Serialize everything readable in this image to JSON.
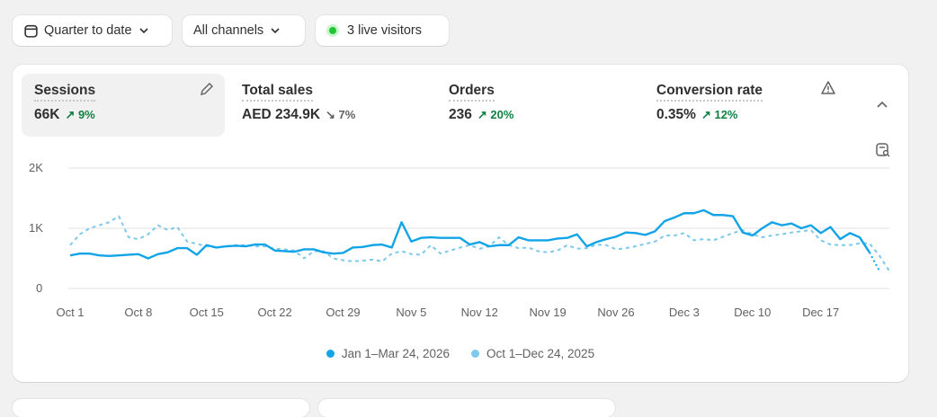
{
  "toolbar": {
    "date_range": {
      "label": "Quarter to date",
      "icon": "calendar-icon"
    },
    "channels": {
      "label": "All channels"
    },
    "live": {
      "label": "3 live visitors",
      "dot_color": "#22c531"
    }
  },
  "metrics": [
    {
      "label": "Sessions",
      "value": "66K",
      "delta": "9%",
      "direction": "up",
      "active": true
    },
    {
      "label": "Total sales",
      "value": "AED 234.9K",
      "delta": "7%",
      "direction": "down"
    },
    {
      "label": "Orders",
      "value": "236",
      "delta": "20%",
      "direction": "up"
    },
    {
      "label": "Conversion rate",
      "value": "0.35%",
      "delta": "12%",
      "direction": "up"
    }
  ],
  "colors": {
    "current": "#13a4e8",
    "previous": "#7cc9ec",
    "positive": "#108043"
  },
  "chart_data": {
    "type": "line",
    "y_ticks": [
      "2K",
      "1K",
      "0"
    ],
    "ylim": [
      0,
      2000
    ],
    "x_ticks": [
      "Oct 1",
      "Oct 8",
      "Oct 15",
      "Oct 22",
      "Oct 29",
      "Nov 5",
      "Nov 12",
      "Nov 19",
      "Nov 26",
      "Dec 3",
      "Dec 10",
      "Dec 17"
    ],
    "x_start": "Oct 1",
    "grid": true,
    "legend": "bottom",
    "series": [
      {
        "name": "Jan 1–Mar 24, 2026",
        "style": "solid",
        "values": [
          550,
          580,
          580,
          550,
          540,
          550,
          560,
          570,
          500,
          570,
          600,
          670,
          670,
          560,
          720,
          680,
          700,
          710,
          700,
          730,
          730,
          630,
          620,
          610,
          650,
          650,
          600,
          580,
          590,
          680,
          690,
          720,
          730,
          680,
          1100,
          780,
          840,
          850,
          840,
          840,
          840,
          730,
          770,
          700,
          720,
          720,
          850,
          800,
          800,
          800,
          830,
          840,
          900,
          700,
          770,
          820,
          860,
          930,
          920,
          890,
          950,
          1120,
          1180,
          1250,
          1250,
          1300,
          1220,
          1220,
          1200,
          930,
          880,
          1000,
          1100,
          1050,
          1080,
          1000,
          1050,
          920,
          1020,
          820,
          920,
          850,
          600,
          300
        ]
      },
      {
        "name": "Oct 1–Dec 24, 2025",
        "style": "dashed",
        "values": [
          720,
          900,
          1000,
          1050,
          1100,
          1200,
          850,
          820,
          900,
          1050,
          970,
          1020,
          780,
          740,
          700,
          680,
          700,
          720,
          720,
          700,
          700,
          660,
          650,
          630,
          500,
          620,
          620,
          500,
          470,
          450,
          460,
          480,
          450,
          580,
          620,
          570,
          560,
          720,
          580,
          630,
          680,
          720,
          660,
          700,
          850,
          720,
          670,
          680,
          620,
          600,
          630,
          720,
          660,
          670,
          730,
          720,
          650,
          670,
          700,
          740,
          780,
          880,
          880,
          920,
          800,
          820,
          800,
          860,
          920,
          970,
          900,
          850,
          880,
          900,
          930,
          950,
          970,
          800,
          730,
          720,
          720,
          750,
          750,
          550,
          300
        ]
      }
    ]
  }
}
